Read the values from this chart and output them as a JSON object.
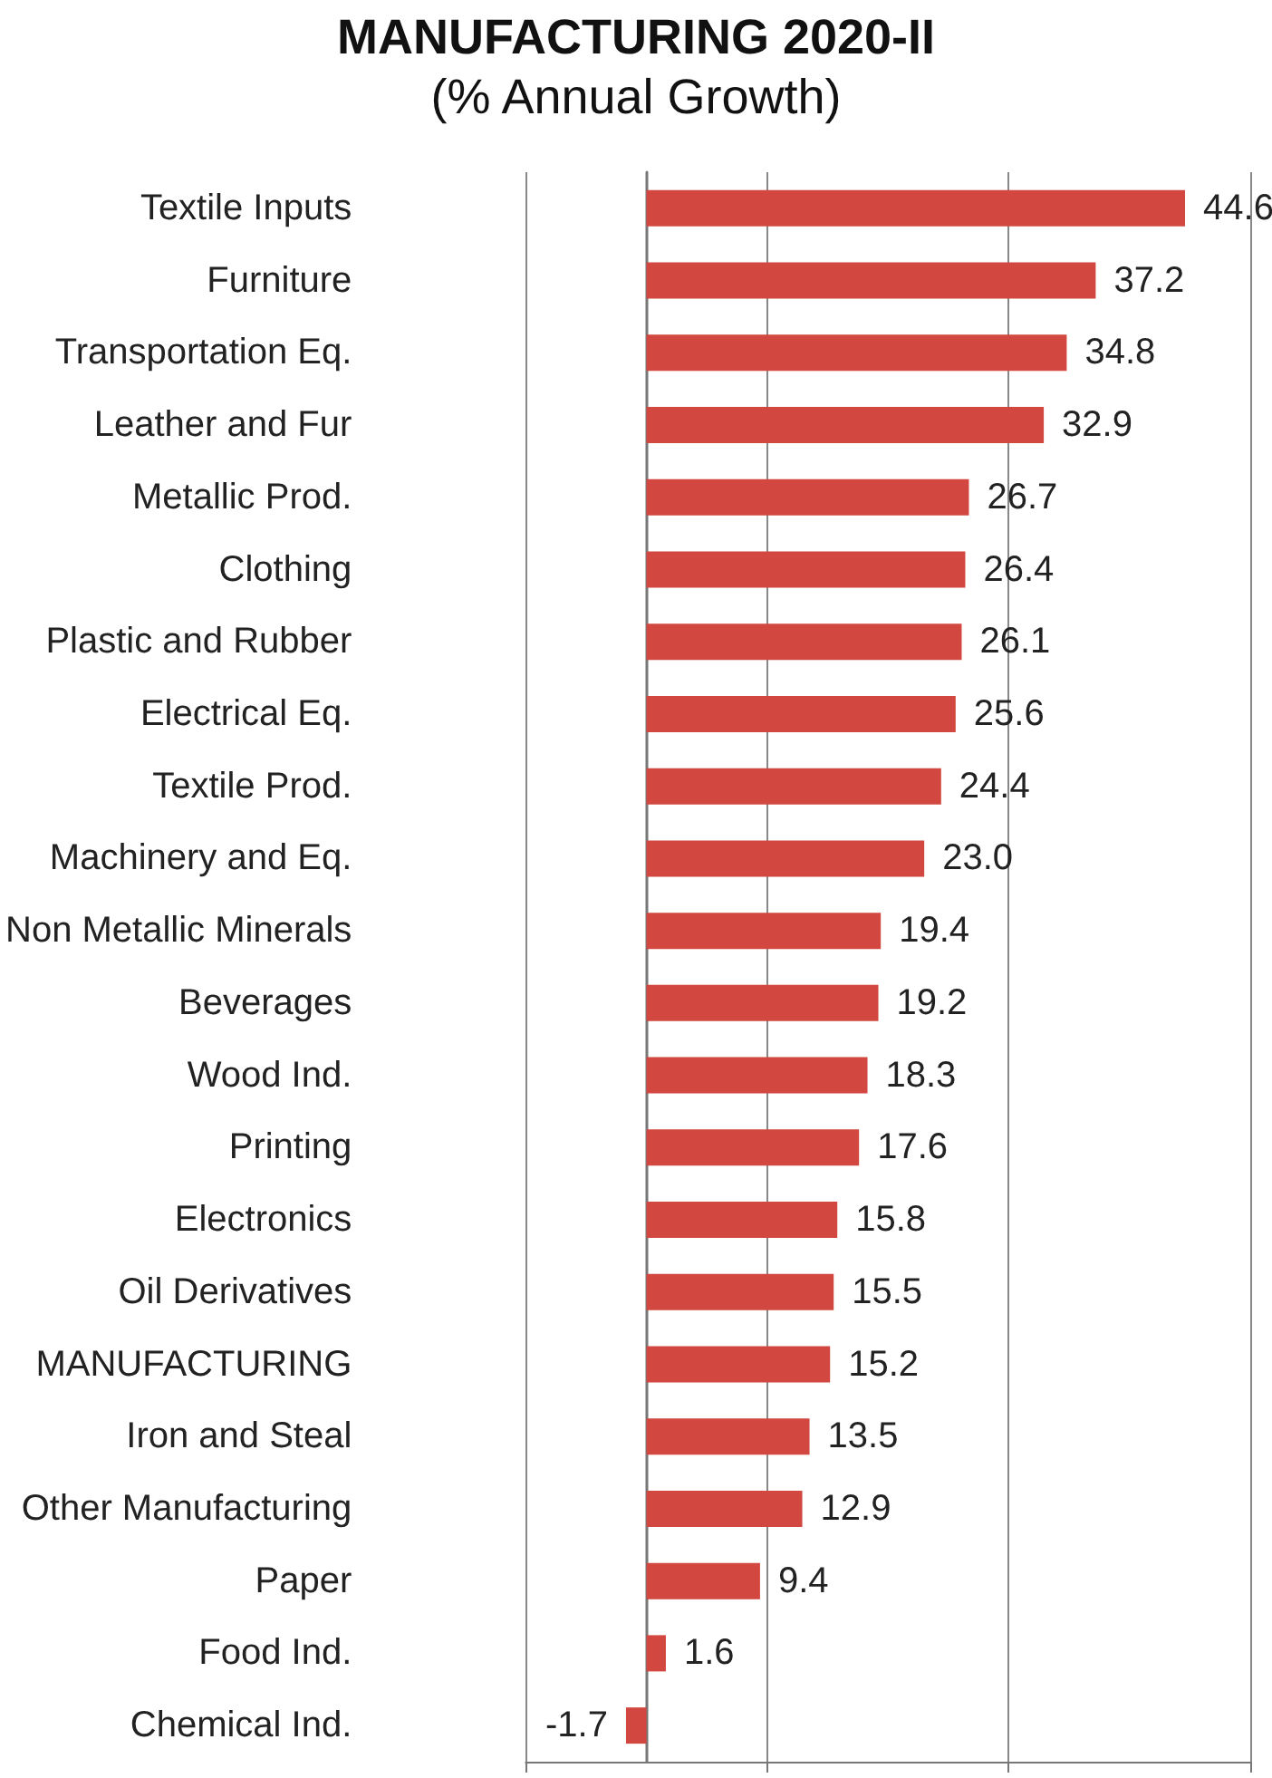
{
  "chart_data": {
    "type": "bar",
    "orientation": "horizontal",
    "title": "MANUFACTURING 2020-II",
    "subtitle": "(% Annual Growth)",
    "categories": [
      "Textile Inputs",
      "Furniture",
      "Transportation Eq.",
      "Leather and Fur",
      "Metallic Prod.",
      "Clothing",
      "Plastic and Rubber",
      "Electrical Eq.",
      "Textile Prod.",
      "Machinery and Eq.",
      "Non Metallic Minerals",
      "Beverages",
      "Wood Ind.",
      "Printing",
      "Electronics",
      "Oil Derivatives",
      "MANUFACTURING",
      "Iron and Steal",
      "Other Manufacturing",
      "Paper",
      "Food Ind.",
      "Chemical Ind."
    ],
    "values": [
      44.6,
      37.2,
      34.8,
      32.9,
      26.7,
      26.4,
      26.1,
      25.6,
      24.4,
      23.0,
      19.4,
      19.2,
      18.3,
      17.6,
      15.8,
      15.5,
      15.2,
      13.5,
      12.9,
      9.4,
      1.6,
      -1.7
    ],
    "value_labels": [
      "44.6",
      "37.2",
      "34.8",
      "32.9",
      "26.7",
      "26.4",
      "26.1",
      "25.6",
      "24.4",
      "23.0",
      "19.4",
      "19.2",
      "18.3",
      "17.6",
      "15.8",
      "15.5",
      "15.2",
      "13.5",
      "12.9",
      "9.4",
      "1.6",
      "-1.7"
    ],
    "color": "#d2473f",
    "xlim": [
      -10,
      50
    ],
    "xticks": [
      {
        "value": -10,
        "label": null
      },
      {
        "value": 10,
        "label": null
      },
      {
        "value": 30,
        "label": null
      },
      {
        "value": 50,
        "label": null
      }
    ],
    "grid": "x",
    "tick_labels": "y"
  }
}
